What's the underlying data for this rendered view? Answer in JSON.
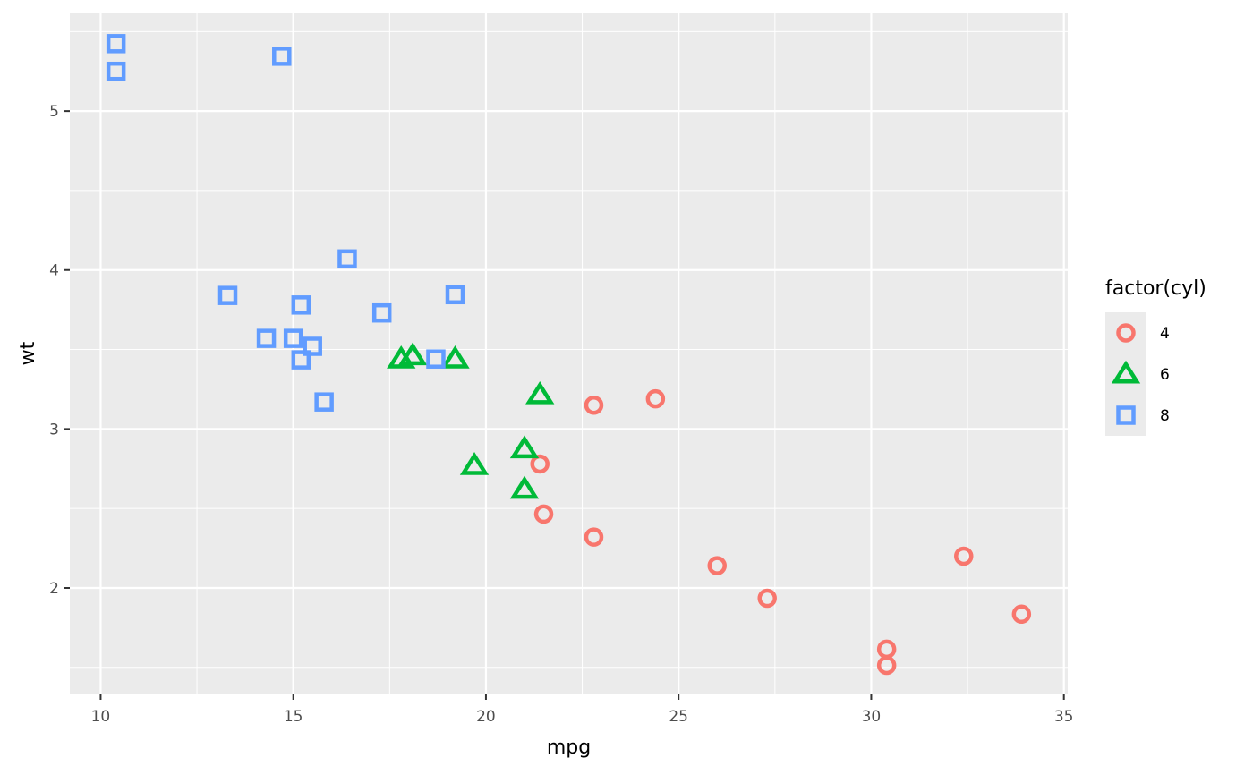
{
  "chart_data": {
    "type": "scatter",
    "xlabel": "mpg",
    "ylabel": "wt",
    "xlim": [
      9.2,
      35.1
    ],
    "ylim": [
      1.33,
      5.62
    ],
    "x_ticks": [
      10,
      15,
      20,
      25,
      30,
      35
    ],
    "y_ticks": [
      2,
      3,
      4,
      5
    ],
    "grid": true,
    "legend": {
      "title": "factor(cyl)",
      "placement": "right",
      "entries": [
        "4",
        "6",
        "8"
      ]
    },
    "series": [
      {
        "name": "4",
        "shape": "circle",
        "color": "#F8766D",
        "points": [
          [
            22.8,
            2.32
          ],
          [
            24.4,
            3.19
          ],
          [
            22.8,
            3.15
          ],
          [
            32.4,
            2.2
          ],
          [
            30.4,
            1.615
          ],
          [
            33.9,
            1.835
          ],
          [
            21.5,
            2.465
          ],
          [
            27.3,
            1.935
          ],
          [
            26.0,
            2.14
          ],
          [
            30.4,
            1.513
          ],
          [
            21.4,
            2.78
          ]
        ]
      },
      {
        "name": "6",
        "shape": "triangle",
        "color": "#00BA38",
        "points": [
          [
            21.0,
            2.62
          ],
          [
            21.0,
            2.875
          ],
          [
            21.4,
            3.215
          ],
          [
            18.1,
            3.46
          ],
          [
            19.2,
            3.44
          ],
          [
            17.8,
            3.44
          ],
          [
            19.7,
            2.77
          ]
        ]
      },
      {
        "name": "8",
        "shape": "square",
        "color": "#619CFF",
        "points": [
          [
            18.7,
            3.44
          ],
          [
            14.3,
            3.57
          ],
          [
            16.4,
            4.07
          ],
          [
            17.3,
            3.73
          ],
          [
            15.2,
            3.78
          ],
          [
            10.4,
            5.25
          ],
          [
            10.4,
            5.424
          ],
          [
            14.7,
            5.345
          ],
          [
            15.5,
            3.52
          ],
          [
            15.2,
            3.435
          ],
          [
            13.3,
            3.84
          ],
          [
            19.2,
            3.845
          ],
          [
            15.8,
            3.17
          ],
          [
            15.0,
            3.57
          ]
        ]
      }
    ]
  }
}
